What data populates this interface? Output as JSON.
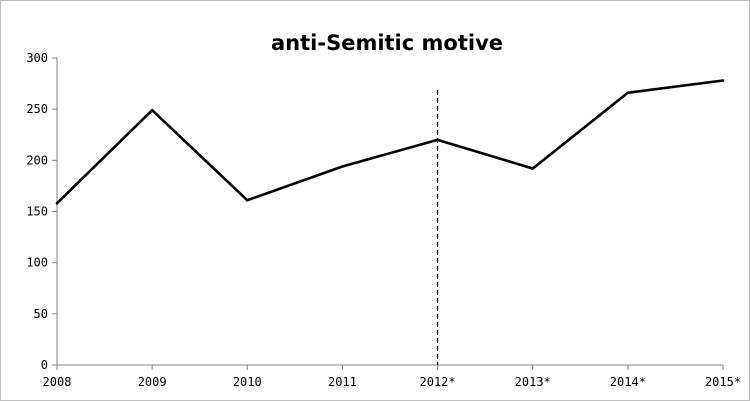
{
  "chart_data": {
    "type": "line",
    "title": "anti-Semitic motive",
    "xlabel": "",
    "ylabel": "",
    "categories": [
      "2008",
      "2009",
      "2010",
      "2011",
      "2012*",
      "2013*",
      "2014*",
      "2015*"
    ],
    "series": [
      {
        "values": [
          158,
          249,
          161,
          194,
          220,
          192,
          266,
          278
        ],
        "color": "#000000"
      }
    ],
    "ylim": [
      0,
      300
    ],
    "yticks": [
      "0",
      "50",
      "100",
      "150",
      "200",
      "250",
      "300"
    ],
    "yticks_values": [
      0,
      50,
      100,
      150,
      200,
      250,
      300
    ],
    "grid": false,
    "legend": "none",
    "annotations": [
      {
        "type": "vertical-dashed-line",
        "at_category": "2012*"
      }
    ]
  }
}
